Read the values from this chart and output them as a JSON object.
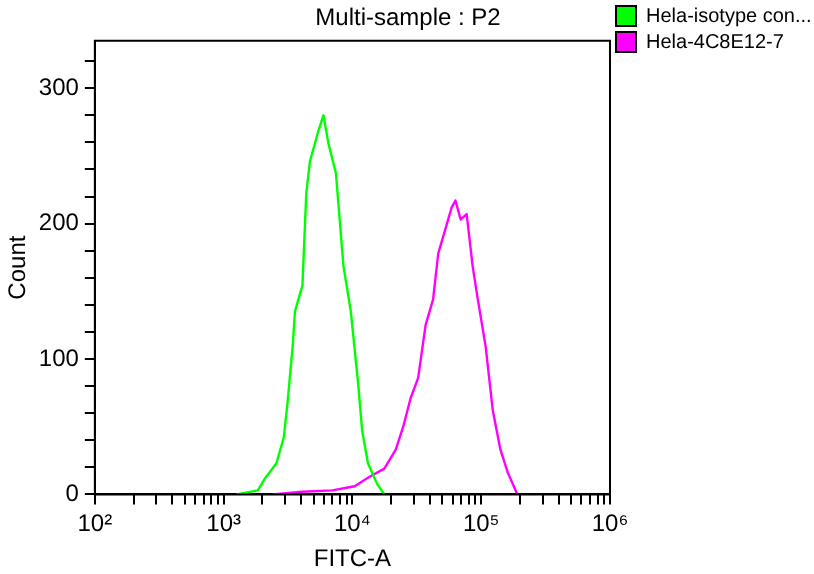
{
  "chart_data": {
    "type": "line",
    "title": "Multi-sample : P2",
    "xlabel": "FITC-A",
    "ylabel": "Count",
    "log": "x",
    "legend": "right",
    "grid": false,
    "xlim": [
      100,
      1000000
    ],
    "ylim": [
      0,
      335
    ],
    "xticks": [
      {
        "value": 100,
        "label": "10²"
      },
      {
        "value": 200,
        "label": null
      },
      {
        "value": 300,
        "label": null
      },
      {
        "value": 400,
        "label": null
      },
      {
        "value": 500,
        "label": null
      },
      {
        "value": 600,
        "label": null
      },
      {
        "value": 700,
        "label": null
      },
      {
        "value": 800,
        "label": null
      },
      {
        "value": 900,
        "label": null
      },
      {
        "value": 1000,
        "label": "10³"
      },
      {
        "value": 2000,
        "label": null
      },
      {
        "value": 3000,
        "label": null
      },
      {
        "value": 4000,
        "label": null
      },
      {
        "value": 5000,
        "label": null
      },
      {
        "value": 6000,
        "label": null
      },
      {
        "value": 7000,
        "label": null
      },
      {
        "value": 8000,
        "label": null
      },
      {
        "value": 9000,
        "label": null
      },
      {
        "value": 10000,
        "label": "10⁴"
      },
      {
        "value": 20000,
        "label": null
      },
      {
        "value": 30000,
        "label": null
      },
      {
        "value": 40000,
        "label": null
      },
      {
        "value": 50000,
        "label": null
      },
      {
        "value": 60000,
        "label": null
      },
      {
        "value": 70000,
        "label": null
      },
      {
        "value": 80000,
        "label": null
      },
      {
        "value": 90000,
        "label": null
      },
      {
        "value": 100000,
        "label": "10⁵"
      },
      {
        "value": 200000,
        "label": null
      },
      {
        "value": 300000,
        "label": null
      },
      {
        "value": 400000,
        "label": null
      },
      {
        "value": 500000,
        "label": null
      },
      {
        "value": 600000,
        "label": null
      },
      {
        "value": 700000,
        "label": null
      },
      {
        "value": 800000,
        "label": null
      },
      {
        "value": 900000,
        "label": null
      },
      {
        "value": 1000000,
        "label": "10⁶"
      }
    ],
    "yticks": [
      0,
      {
        "value": 20,
        "label": null
      },
      {
        "value": 40,
        "label": null
      },
      {
        "value": 60,
        "label": null
      },
      {
        "value": 80,
        "label": null
      },
      100,
      {
        "value": 120,
        "label": null
      },
      {
        "value": 140,
        "label": null
      },
      {
        "value": 160,
        "label": null
      },
      {
        "value": 180,
        "label": null
      },
      200,
      {
        "value": 220,
        "label": null
      },
      {
        "value": 240,
        "label": null
      },
      {
        "value": 260,
        "label": null
      },
      {
        "value": 280,
        "label": null
      },
      300,
      {
        "value": 320,
        "label": null
      }
    ],
    "series": [
      {
        "name": "Hela-isotype con...",
        "color": "#00ff00",
        "x": [
          1260,
          1840,
          2100,
          2570,
          2930,
          3130,
          3440,
          3580,
          3830,
          4090,
          4380,
          4680,
          5350,
          5950,
          6520,
          7450,
          8510,
          9720,
          11100,
          11900,
          13200,
          15500,
          17700
        ],
        "values": [
          0,
          3,
          12,
          23,
          42,
          67,
          110,
          135,
          145,
          154,
          222,
          246,
          266,
          280,
          259,
          237,
          169,
          135,
          81,
          47,
          23,
          8,
          0
        ]
      },
      {
        "name": "Hela-4C8E12-7",
        "color": "#ff00ff",
        "x": [
          2400,
          4090,
          6970,
          10400,
          13600,
          17700,
          21700,
          24800,
          28300,
          32400,
          37000,
          42300,
          46400,
          51600,
          59000,
          63100,
          69300,
          77100,
          85700,
          94100,
          108000,
          123000,
          141000,
          161000,
          191000
        ],
        "values": [
          0,
          2,
          3,
          6,
          13,
          19,
          33,
          50,
          71,
          86,
          125,
          144,
          178,
          193,
          212,
          217,
          203,
          207,
          169,
          144,
          110,
          62,
          33,
          16,
          0
        ]
      }
    ]
  }
}
